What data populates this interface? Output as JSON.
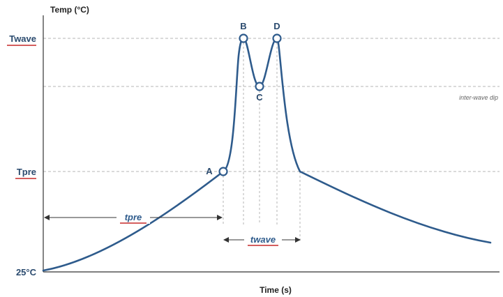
{
  "axes": {
    "y_title": "Temp (°C)",
    "x_title": "Time (s)"
  },
  "y_levels": {
    "t_wave": "Twave",
    "t_pre": "Tpre",
    "t_base": "25°C"
  },
  "points": {
    "a": "A",
    "b": "B",
    "c": "C",
    "d": "D"
  },
  "annotations": {
    "inter_wave_dip": "inter-wave dip"
  },
  "spans": {
    "t_pre": "tpre",
    "t_wave": "twave"
  },
  "colors": {
    "curve": "#2e5b8c",
    "label": "#2a4a6e",
    "underline": "#c62828",
    "guide": "#b5b5b5"
  }
}
